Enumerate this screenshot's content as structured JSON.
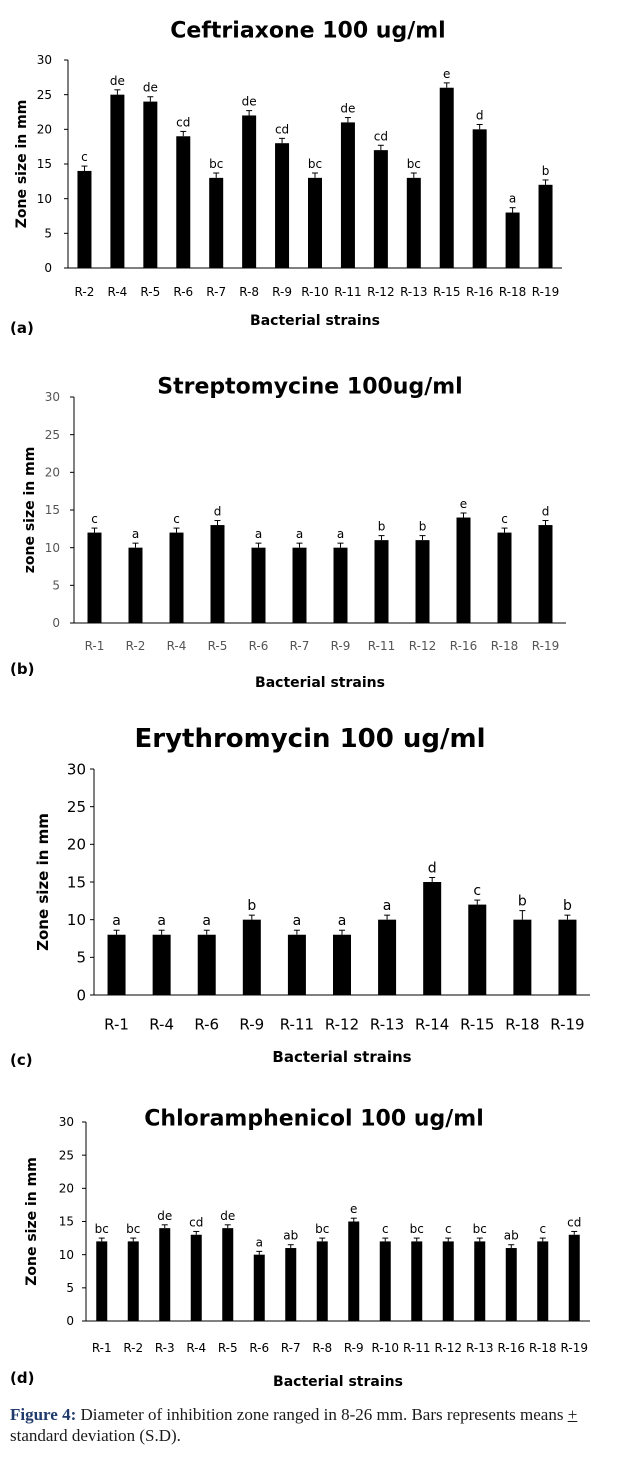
{
  "chart_data": [
    {
      "type": "bar",
      "panel_label": "(a)",
      "title": "Ceftriaxone 100 ug/ml",
      "xlabel": "Bacterial strains",
      "ylabel": "Zone size in mm",
      "ylim": [
        0,
        30
      ],
      "yticks": [
        0,
        5,
        10,
        15,
        20,
        25,
        30
      ],
      "grid": false,
      "legend": "none",
      "bar_color": "#000000",
      "categories": [
        "R-2",
        "R-4",
        "R-5",
        "R-6",
        "R-7",
        "R-8",
        "R-9",
        "R-10",
        "R-11",
        "R-12",
        "R-13",
        "R-15",
        "R-16",
        "R-18",
        "R-19"
      ],
      "values": [
        14,
        25,
        24,
        19,
        13,
        22,
        18,
        13,
        21,
        17,
        13,
        26,
        20,
        8,
        12
      ],
      "errors": [
        0.7,
        0.7,
        0.7,
        0.7,
        0.7,
        0.7,
        0.7,
        0.7,
        0.7,
        0.7,
        0.7,
        0.7,
        0.7,
        0.7,
        0.7
      ],
      "letters": [
        "c",
        "de",
        "de",
        "cd",
        "bc",
        "de",
        "cd",
        "bc",
        "de",
        "cd",
        "bc",
        "e",
        "d",
        "a",
        "b"
      ]
    },
    {
      "type": "bar",
      "panel_label": "(b)",
      "title": "Streptomycine 100ug/ml",
      "xlabel": "Bacterial strains",
      "ylabel": "zone size in mm",
      "ylim": [
        0,
        30
      ],
      "yticks": [
        0,
        5,
        10,
        15,
        20,
        25,
        30
      ],
      "grid": false,
      "legend": "none",
      "bar_color": "#000000",
      "categories": [
        "R-1",
        "R-2",
        "R-4",
        "R-5",
        "R-6",
        "R-7",
        "R-9",
        "R-11",
        "R-12",
        "R-16",
        "R-18",
        "R-19"
      ],
      "values": [
        12,
        10,
        12,
        13,
        10,
        10,
        10,
        11,
        11,
        14,
        12,
        13
      ],
      "errors": [
        0.6,
        0.6,
        0.6,
        0.6,
        0.6,
        0.6,
        0.6,
        0.6,
        0.6,
        0.6,
        0.6,
        0.6
      ],
      "letters": [
        "c",
        "a",
        "c",
        "d",
        "a",
        "a",
        "a",
        "b",
        "b",
        "e",
        "c",
        "d"
      ]
    },
    {
      "type": "bar",
      "panel_label": "(c)",
      "title": "Erythromycin 100 ug/ml",
      "xlabel": "Bacterial strains",
      "ylabel": "Zone size in mm",
      "ylim": [
        0,
        30
      ],
      "yticks": [
        0,
        5,
        10,
        15,
        20,
        25,
        30
      ],
      "grid": false,
      "legend": "none",
      "bar_color": "#000000",
      "categories": [
        "R-1",
        "R-4",
        "R-6",
        "R-9",
        "R-11",
        "R-12",
        "R-13",
        "R-14",
        "R-15",
        "R-18",
        "R-19"
      ],
      "values": [
        8,
        8,
        8,
        10,
        8,
        8,
        10,
        15,
        12,
        10,
        10
      ],
      "errors": [
        0.6,
        0.6,
        0.6,
        0.6,
        0.6,
        0.6,
        0.6,
        0.6,
        0.6,
        1.2,
        0.6
      ],
      "letters": [
        "a",
        "a",
        "a",
        "b",
        "a",
        "a",
        "a",
        "d",
        "c",
        "b",
        "b"
      ]
    },
    {
      "type": "bar",
      "panel_label": "(d)",
      "title": "Chloramphenicol 100 ug/ml",
      "xlabel": "Bacterial strains",
      "ylabel": "Zone size in mm",
      "ylim": [
        0,
        30
      ],
      "yticks": [
        0,
        5,
        10,
        15,
        20,
        25,
        30
      ],
      "grid": false,
      "legend": "none",
      "bar_color": "#000000",
      "categories": [
        "R-1",
        "R-2",
        "R-3",
        "R-4",
        "R-5",
        "R-6",
        "R-7",
        "R-8",
        "R-9",
        "R-10",
        "R-11",
        "R-12",
        "R-13",
        "R-16",
        "R-18",
        "R-19"
      ],
      "values": [
        12,
        12,
        14,
        13,
        14,
        10,
        11,
        12,
        15,
        12,
        12,
        12,
        12,
        11,
        12,
        13
      ],
      "errors": [
        0.5,
        0.5,
        0.5,
        0.5,
        0.5,
        0.5,
        0.5,
        0.5,
        0.5,
        0.5,
        0.5,
        0.5,
        0.5,
        0.5,
        0.5,
        0.5
      ],
      "letters": [
        "bc",
        "bc",
        "de",
        "cd",
        "de",
        "a",
        "ab",
        "bc",
        "e",
        "c",
        "bc",
        "c",
        "bc",
        "ab",
        "c",
        "cd"
      ]
    }
  ],
  "caption": {
    "lead": "Figure 4:",
    "text_before_pm": " Diameter of inhibition zone ranged in 8-26 mm. Bars represents means ",
    "pm_symbol": "+",
    "text_after_pm": " standard deviation (S.D)."
  }
}
